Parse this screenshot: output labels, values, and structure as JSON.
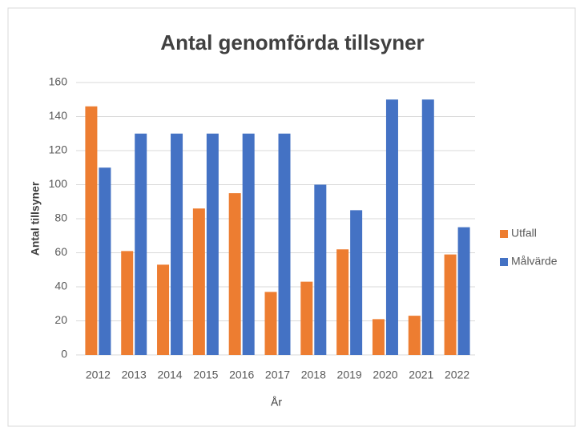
{
  "chart_data": {
    "type": "bar",
    "title": "Antal genomförda tillsyner",
    "x_label": "År",
    "y_label": "Antal tillsyner",
    "categories": [
      "2012",
      "2013",
      "2014",
      "2015",
      "2016",
      "2017",
      "2018",
      "2019",
      "2020",
      "2021",
      "2022"
    ],
    "series": [
      {
        "name": "Utfall",
        "color": "#ed7d31",
        "values": [
          146,
          61,
          53,
          86,
          95,
          37,
          43,
          62,
          21,
          23,
          59
        ]
      },
      {
        "name": "Målvärde",
        "color": "#4472c4",
        "values": [
          110,
          130,
          130,
          130,
          130,
          130,
          100,
          85,
          150,
          150,
          75
        ]
      }
    ],
    "ylim": [
      0,
      160
    ],
    "yticks": [
      0,
      20,
      40,
      60,
      80,
      100,
      120,
      140,
      160
    ],
    "grid": true,
    "legend": "right"
  }
}
